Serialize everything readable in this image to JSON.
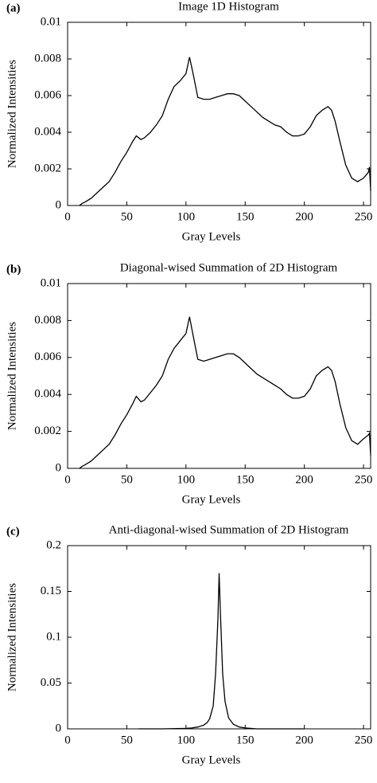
{
  "chart_data": [
    {
      "type": "line",
      "panel_label": "(a)",
      "title": "Image 1D Histogram",
      "x_label": "Gray Levels",
      "y_label": "Normalized Intensities",
      "color": "#000000",
      "x": [
        10,
        12,
        15,
        20,
        25,
        30,
        35,
        40,
        45,
        50,
        55,
        58,
        62,
        65,
        70,
        75,
        80,
        85,
        90,
        95,
        100,
        103,
        106,
        110,
        115,
        120,
        125,
        130,
        135,
        140,
        145,
        150,
        155,
        160,
        165,
        170,
        175,
        180,
        185,
        190,
        195,
        200,
        205,
        210,
        215,
        220,
        223,
        226,
        230,
        235,
        240,
        245,
        250,
        254,
        255,
        256
      ],
      "values": [
        0,
        0.0001,
        0.0002,
        0.0004,
        0.0007,
        0.001,
        0.0013,
        0.0018,
        0.0024,
        0.0029,
        0.0035,
        0.0038,
        0.0036,
        0.0037,
        0.004,
        0.0044,
        0.0049,
        0.0058,
        0.0065,
        0.0068,
        0.0072,
        0.0081,
        0.0072,
        0.0059,
        0.0058,
        0.0058,
        0.0059,
        0.006,
        0.0061,
        0.0061,
        0.006,
        0.0057,
        0.0054,
        0.0051,
        0.0048,
        0.0046,
        0.0044,
        0.0043,
        0.004,
        0.0038,
        0.0038,
        0.0039,
        0.0043,
        0.0049,
        0.0052,
        0.0054,
        0.0052,
        0.0046,
        0.0035,
        0.0022,
        0.0015,
        0.0013,
        0.0015,
        0.0018,
        0.0021,
        0.0008
      ],
      "xlim": [
        0,
        256
      ],
      "xticks": [
        0,
        50,
        100,
        150,
        200,
        250
      ],
      "ylim": [
        0,
        0.01
      ],
      "yticks": [
        0,
        0.002,
        0.004,
        0.006,
        0.008,
        0.01
      ]
    },
    {
      "type": "line",
      "panel_label": "(b)",
      "title": "Diagonal-wised Summation of 2D Histogram",
      "x_label": "Gray Levels",
      "y_label": "Normalized Intensities",
      "color": "#000000",
      "x": [
        10,
        12,
        15,
        20,
        25,
        30,
        35,
        40,
        45,
        50,
        55,
        58,
        62,
        65,
        70,
        75,
        80,
        85,
        90,
        95,
        100,
        103,
        106,
        110,
        115,
        120,
        125,
        130,
        135,
        140,
        145,
        150,
        155,
        160,
        165,
        170,
        175,
        180,
        185,
        190,
        195,
        200,
        205,
        210,
        215,
        220,
        223,
        226,
        230,
        235,
        240,
        245,
        250,
        254,
        255,
        256
      ],
      "values": [
        0,
        0.0001,
        0.0002,
        0.0004,
        0.0007,
        0.001,
        0.0013,
        0.0018,
        0.0024,
        0.0029,
        0.0035,
        0.0039,
        0.0036,
        0.0037,
        0.0041,
        0.0045,
        0.005,
        0.0059,
        0.0065,
        0.0069,
        0.0073,
        0.0082,
        0.0072,
        0.0059,
        0.0058,
        0.0059,
        0.006,
        0.0061,
        0.0062,
        0.0062,
        0.006,
        0.0057,
        0.0054,
        0.0051,
        0.0049,
        0.0047,
        0.0045,
        0.0043,
        0.004,
        0.0038,
        0.0038,
        0.0039,
        0.0043,
        0.005,
        0.0053,
        0.0055,
        0.0053,
        0.0047,
        0.0035,
        0.0022,
        0.0015,
        0.0013,
        0.0016,
        0.0018,
        0.0019,
        0.0007
      ],
      "xlim": [
        0,
        256
      ],
      "xticks": [
        0,
        50,
        100,
        150,
        200,
        250
      ],
      "ylim": [
        0,
        0.01
      ],
      "yticks": [
        0,
        0.002,
        0.004,
        0.006,
        0.008,
        0.01
      ]
    },
    {
      "type": "line",
      "panel_label": "(c)",
      "title": "Anti-diagonal-wised Summation of 2D Histogram",
      "x_label": "Gray Levels",
      "y_label": "Normalized Intensities",
      "color": "#000000",
      "x": [
        60,
        80,
        100,
        105,
        110,
        115,
        118,
        120,
        123,
        125,
        127,
        128,
        129,
        131,
        133,
        136,
        140,
        145,
        150,
        160,
        180,
        200
      ],
      "values": [
        0,
        0,
        0.0005,
        0.001,
        0.002,
        0.004,
        0.007,
        0.011,
        0.025,
        0.06,
        0.12,
        0.17,
        0.13,
        0.06,
        0.03,
        0.012,
        0.005,
        0.002,
        0.001,
        0,
        0,
        0
      ],
      "xlim": [
        0,
        256
      ],
      "xticks": [
        0,
        50,
        100,
        150,
        200,
        250
      ],
      "ylim": [
        0,
        0.2
      ],
      "yticks": [
        0,
        0.05,
        0.1,
        0.15,
        0.2
      ]
    }
  ]
}
